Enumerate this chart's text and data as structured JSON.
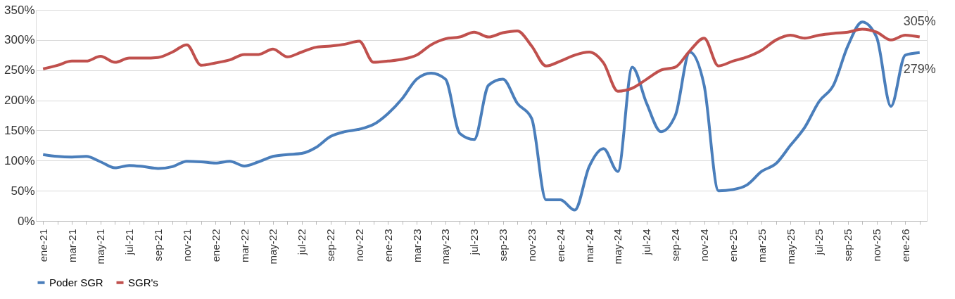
{
  "chart_data": {
    "type": "line",
    "categories": [
      "ene-21",
      null,
      "mar-21",
      null,
      "may-21",
      null,
      "jul-21",
      null,
      "sep-21",
      null,
      "nov-21",
      null,
      "ene-22",
      null,
      "mar-22",
      null,
      "may-22",
      null,
      "jul-22",
      null,
      "sep-22",
      null,
      "nov-22",
      null,
      "ene-23",
      null,
      "mar-23",
      null,
      "may-23",
      null,
      "jul-23",
      null,
      "sep-23",
      null,
      "nov-23",
      null,
      "ene-24",
      null,
      "mar-24",
      null,
      "may-24",
      null,
      "jul-24",
      null,
      "sep-24",
      null,
      "nov-24",
      null,
      "ene-25",
      null,
      "mar-25",
      null,
      "may-25",
      null,
      "jul-25",
      null,
      "sep-25",
      null,
      "nov-25",
      null,
      "ene-26",
      null
    ],
    "series": [
      {
        "name": "Poder SGR",
        "color": "#4a7ebb",
        "values": [
          110,
          107,
          106,
          107,
          98,
          88,
          92,
          90,
          87,
          90,
          99,
          98,
          96,
          99,
          91,
          98,
          107,
          110,
          112,
          122,
          140,
          148,
          152,
          160,
          178,
          203,
          235,
          245,
          235,
          145,
          135,
          225,
          235,
          195,
          170,
          35,
          35,
          18,
          90,
          120,
          82,
          255,
          195,
          148,
          175,
          280,
          225,
          50,
          52,
          60,
          82,
          95,
          125,
          155,
          198,
          225,
          290,
          330,
          305,
          190,
          275,
          279
        ],
        "value_labels": [
          null,
          null,
          null,
          null,
          null,
          null,
          null,
          null,
          null,
          null,
          null,
          null,
          null,
          null,
          null,
          null,
          null,
          null,
          null,
          null,
          null,
          null,
          null,
          null,
          null,
          null,
          null,
          null,
          null,
          null,
          null,
          null,
          null,
          null,
          null,
          null,
          null,
          null,
          null,
          null,
          null,
          null,
          null,
          null,
          null,
          null,
          null,
          null,
          null,
          null,
          null,
          null,
          null,
          null,
          null,
          null,
          null,
          null,
          null,
          null,
          null,
          "279%"
        ]
      },
      {
        "name": "SGR's",
        "color": "#c0504d",
        "values": [
          252,
          258,
          265,
          265,
          273,
          263,
          270,
          270,
          271,
          280,
          292,
          258,
          262,
          267,
          276,
          276,
          285,
          272,
          280,
          288,
          290,
          293,
          298,
          263,
          265,
          268,
          275,
          292,
          302,
          305,
          313,
          305,
          312,
          315,
          290,
          257,
          265,
          275,
          280,
          262,
          215,
          220,
          235,
          250,
          255,
          282,
          303,
          257,
          265,
          272,
          283,
          300,
          308,
          303,
          308,
          311,
          313,
          318,
          313,
          300,
          308,
          305
        ],
        "value_labels": [
          null,
          null,
          null,
          null,
          null,
          null,
          null,
          null,
          null,
          null,
          null,
          null,
          null,
          null,
          null,
          null,
          null,
          null,
          null,
          null,
          null,
          null,
          null,
          null,
          null,
          null,
          null,
          null,
          null,
          null,
          null,
          null,
          null,
          null,
          null,
          null,
          null,
          null,
          null,
          null,
          null,
          null,
          null,
          null,
          null,
          null,
          null,
          null,
          null,
          null,
          null,
          null,
          null,
          null,
          null,
          null,
          null,
          null,
          null,
          null,
          null,
          "305%"
        ]
      }
    ],
    "ylim": [
      0,
      350
    ],
    "yticks": [
      {
        "value": 0,
        "label": "0%"
      },
      {
        "value": 50,
        "label": "50%"
      },
      {
        "value": 100,
        "label": "100%"
      },
      {
        "value": 150,
        "label": "150%"
      },
      {
        "value": 200,
        "label": "200%"
      },
      {
        "value": 250,
        "label": "250%"
      },
      {
        "value": 300,
        "label": "300%"
      },
      {
        "value": 350,
        "label": "350%"
      }
    ],
    "grid": "y",
    "legend": "bottom",
    "marker": "none",
    "line_style": "solid"
  }
}
